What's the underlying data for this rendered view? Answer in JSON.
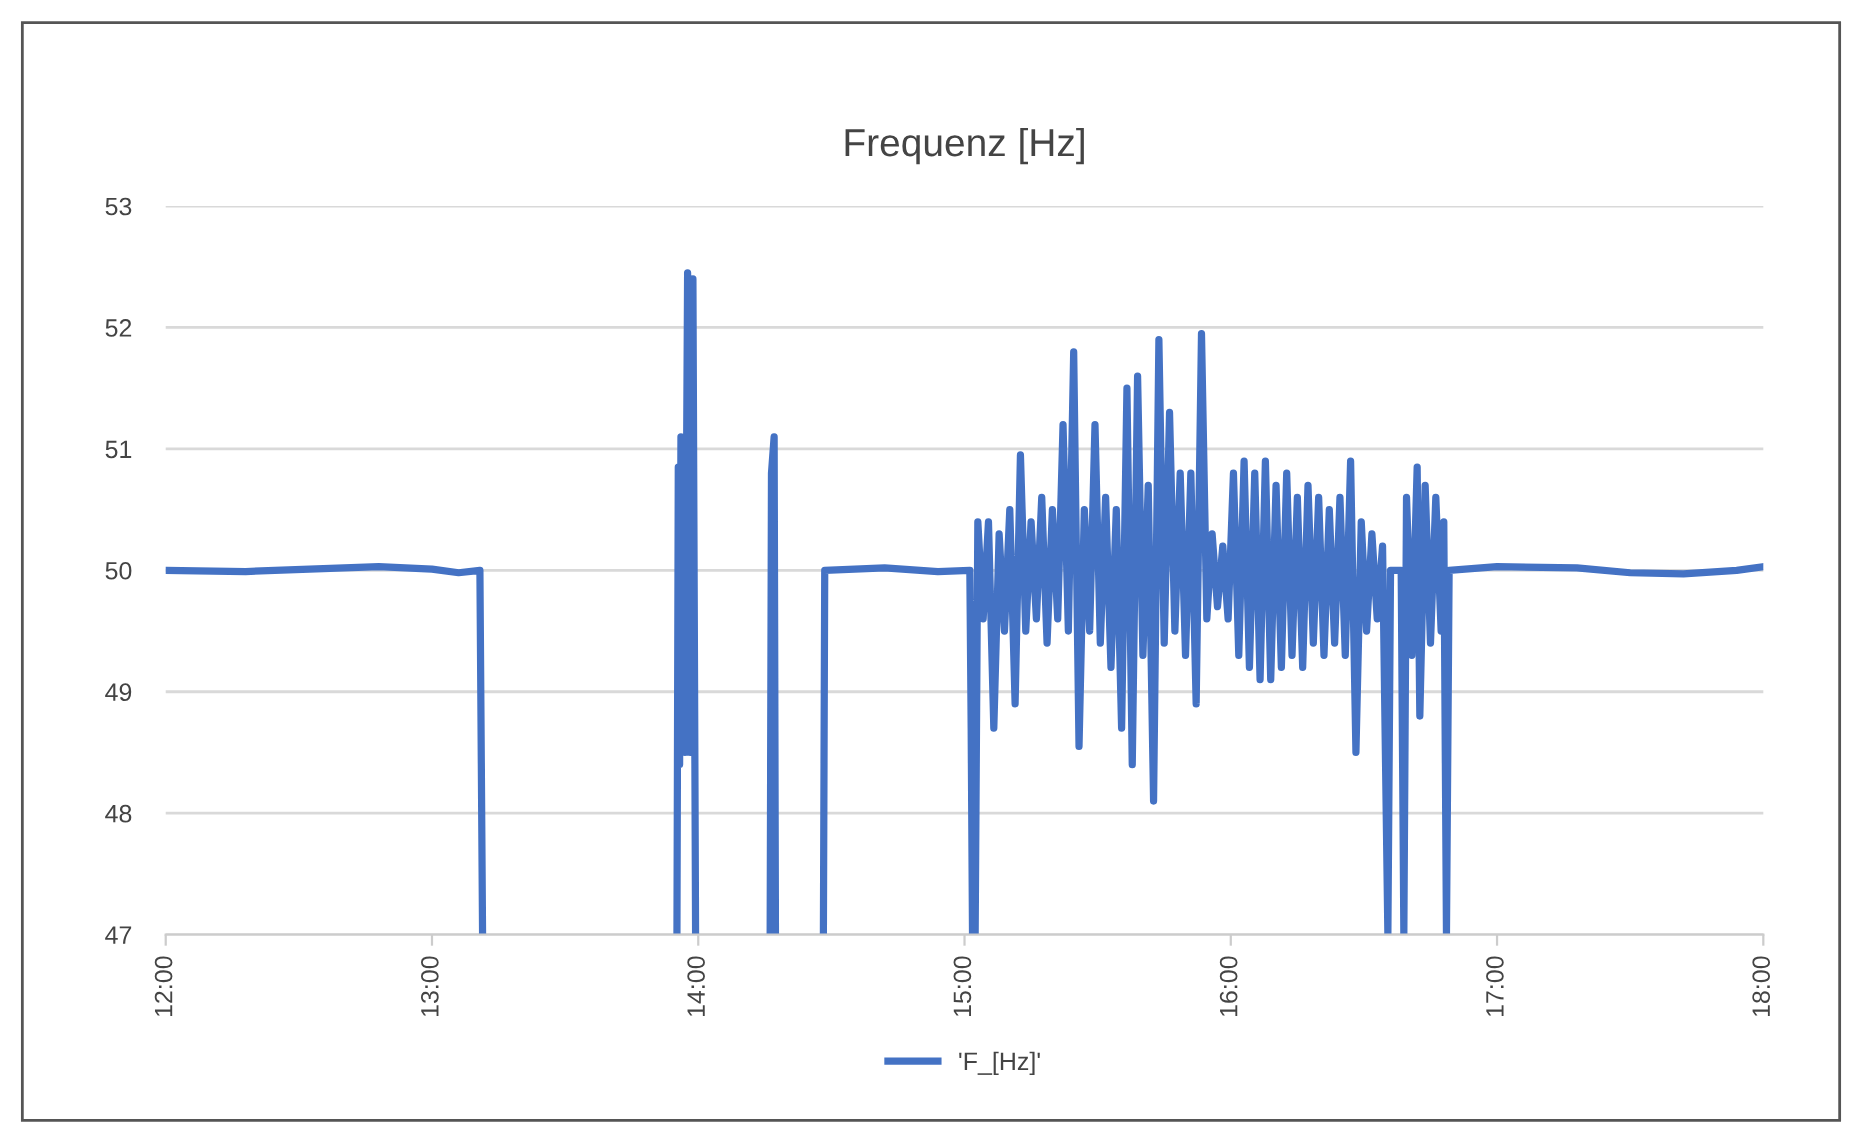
{
  "chart_data": {
    "type": "line",
    "title": "Frequenz [Hz]",
    "xlim": [
      12,
      18
    ],
    "xticks": [
      {
        "value": 12,
        "label": "12:00"
      },
      {
        "value": 13,
        "label": "13:00"
      },
      {
        "value": 14,
        "label": "14:00"
      },
      {
        "value": 15,
        "label": "15:00"
      },
      {
        "value": 16,
        "label": "16:00"
      },
      {
        "value": 17,
        "label": "17:00"
      },
      {
        "value": 18,
        "label": "18:00"
      }
    ],
    "ylim": [
      47,
      53
    ],
    "yticks": [
      47,
      48,
      49,
      50,
      51,
      52,
      53
    ],
    "grid": "y",
    "legend": "bottom",
    "line_style": "solid",
    "series": [
      {
        "name": "'F_[Hz]'",
        "color": "#4472c4",
        "x": [
          12.0,
          12.3,
          12.8,
          13.0,
          13.1,
          13.18,
          13.19,
          13.5,
          13.92,
          13.925,
          13.93,
          13.935,
          13.95,
          13.96,
          13.97,
          13.98,
          13.99,
          14.1,
          14.27,
          14.275,
          14.285,
          14.29,
          14.4,
          14.47,
          14.475,
          14.7,
          14.9,
          15.02,
          15.025,
          15.03,
          15.04,
          15.05,
          15.07,
          15.09,
          15.11,
          15.13,
          15.15,
          15.17,
          15.19,
          15.21,
          15.23,
          15.25,
          15.27,
          15.29,
          15.31,
          15.33,
          15.35,
          15.37,
          15.39,
          15.41,
          15.43,
          15.45,
          15.47,
          15.49,
          15.51,
          15.53,
          15.55,
          15.57,
          15.59,
          15.61,
          15.63,
          15.65,
          15.67,
          15.69,
          15.71,
          15.73,
          15.75,
          15.77,
          15.79,
          15.81,
          15.83,
          15.85,
          15.87,
          15.89,
          15.91,
          15.93,
          15.95,
          15.97,
          15.99,
          16.01,
          16.03,
          16.05,
          16.07,
          16.09,
          16.11,
          16.13,
          16.15,
          16.17,
          16.19,
          16.21,
          16.23,
          16.25,
          16.27,
          16.29,
          16.31,
          16.33,
          16.35,
          16.37,
          16.39,
          16.41,
          16.43,
          16.45,
          16.47,
          16.49,
          16.51,
          16.53,
          16.55,
          16.57,
          16.59,
          16.6,
          16.64,
          16.65,
          16.66,
          16.68,
          16.7,
          16.71,
          16.73,
          16.75,
          16.77,
          16.79,
          16.8,
          16.81,
          16.82,
          17.0,
          17.3,
          17.5,
          17.7,
          17.9,
          18.0
        ],
        "values": [
          50.0,
          49.99,
          50.03,
          50.01,
          49.98,
          50.0,
          47,
          null,
          47,
          50.85,
          48.4,
          51.1,
          48.5,
          52.45,
          48.5,
          52.4,
          47,
          null,
          47,
          50.8,
          51.1,
          47,
          null,
          47,
          50.0,
          50.02,
          49.99,
          50.0,
          48.7,
          47,
          47,
          50.4,
          49.6,
          50.4,
          48.7,
          50.3,
          49.5,
          50.5,
          48.9,
          50.95,
          49.5,
          50.4,
          49.6,
          50.6,
          49.4,
          50.5,
          49.6,
          51.2,
          49.5,
          51.8,
          48.55,
          50.5,
          49.5,
          51.2,
          49.4,
          50.6,
          49.2,
          50.5,
          48.7,
          51.5,
          48.4,
          51.6,
          49.3,
          50.7,
          48.1,
          51.9,
          49.4,
          51.3,
          49.5,
          50.8,
          49.3,
          50.8,
          48.9,
          51.95,
          49.6,
          50.3,
          49.7,
          50.2,
          49.6,
          50.8,
          49.3,
          50.9,
          49.2,
          50.8,
          49.1,
          50.9,
          49.1,
          50.7,
          49.2,
          50.8,
          49.3,
          50.6,
          49.2,
          50.7,
          49.4,
          50.6,
          49.3,
          50.5,
          49.4,
          50.6,
          49.3,
          50.9,
          48.5,
          50.4,
          49.5,
          50.3,
          49.6,
          50.2,
          47,
          50.0,
          50.0,
          47,
          50.6,
          49.3,
          50.85,
          48.8,
          50.7,
          49.4,
          50.6,
          49.5,
          50.4,
          47,
          50.0,
          50.03,
          50.02,
          49.98,
          49.97,
          50.0,
          50.03
        ]
      }
    ]
  }
}
